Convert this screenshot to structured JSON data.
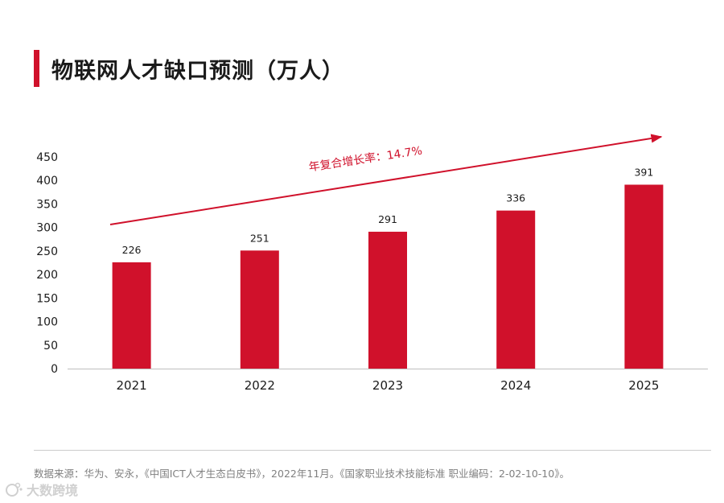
{
  "colors": {
    "accent": "#d0112b",
    "text": "#1a1a1a",
    "muted": "#808080"
  },
  "title": "物联网人才缺口预测（万人）",
  "chart_data": {
    "type": "bar",
    "title": "物联网人才缺口预测（万人）",
    "categories": [
      "2021",
      "2022",
      "2023",
      "2024",
      "2025"
    ],
    "values": [
      226,
      251,
      291,
      336,
      391
    ],
    "data_labels": [
      "226",
      "251",
      "291",
      "336",
      "391"
    ],
    "ylim": [
      0,
      450
    ],
    "yticks": [
      0,
      50,
      100,
      150,
      200,
      250,
      300,
      350,
      400,
      450
    ],
    "xlabel": "",
    "ylabel": "",
    "grid": false,
    "annotation": "年复合增长率：14.7%"
  },
  "source": "数据来源：华为、安永，《中国ICT人才生态白皮书》，2022年11月。《国家职业技术技能标准 职业编码：2-02-10-10》。",
  "watermark": {
    "icon": "watermark-logo-icon",
    "text": "大数跨境"
  }
}
